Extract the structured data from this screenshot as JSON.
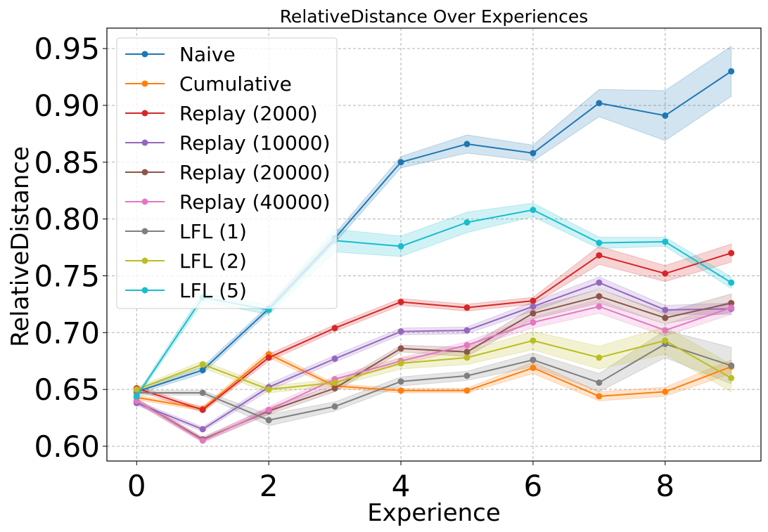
{
  "chart_data": {
    "type": "line",
    "title": "RelativeDistance Over Experiences",
    "xlabel": "Experience",
    "ylabel": "RelativeDistance",
    "xlim": [
      -0.45,
      9.45
    ],
    "ylim": [
      0.587,
      0.968
    ],
    "xticks": [
      0,
      2,
      4,
      6,
      8
    ],
    "yticks": [
      0.6,
      0.65,
      0.7,
      0.75,
      0.8,
      0.85,
      0.9,
      0.95
    ],
    "grid": true,
    "legend_position": "top-left",
    "x": [
      0,
      1,
      2,
      3,
      4,
      5,
      6,
      7,
      8,
      9
    ],
    "series": [
      {
        "name": "Naive",
        "color": "#1f77b4",
        "values": [
          0.648,
          0.667,
          0.721,
          0.783,
          0.85,
          0.866,
          0.858,
          0.902,
          0.891,
          0.93
        ],
        "band": [
          0.002,
          0.003,
          0.003,
          0.004,
          0.005,
          0.008,
          0.007,
          0.012,
          0.022,
          0.022
        ]
      },
      {
        "name": "Cumulative",
        "color": "#ff7f0e",
        "values": [
          0.643,
          0.633,
          0.681,
          0.653,
          0.649,
          0.649,
          0.669,
          0.644,
          0.648,
          0.67
        ],
        "band": [
          0.002,
          0.002,
          0.003,
          0.002,
          0.002,
          0.002,
          0.005,
          0.004,
          0.004,
          0.006
        ]
      },
      {
        "name": "Replay (2000)",
        "color": "#d62728",
        "values": [
          0.651,
          0.632,
          0.678,
          0.704,
          0.727,
          0.722,
          0.728,
          0.768,
          0.752,
          0.77
        ],
        "band": [
          0.002,
          0.002,
          0.003,
          0.003,
          0.003,
          0.003,
          0.003,
          0.008,
          0.007,
          0.008
        ]
      },
      {
        "name": "Replay (10000)",
        "color": "#9467bd",
        "values": [
          0.638,
          0.615,
          0.652,
          0.677,
          0.701,
          0.702,
          0.723,
          0.744,
          0.72,
          0.721
        ],
        "band": [
          0.002,
          0.002,
          0.003,
          0.003,
          0.003,
          0.003,
          0.004,
          0.005,
          0.004,
          0.005
        ]
      },
      {
        "name": "Replay (20000)",
        "color": "#8c564b",
        "values": [
          0.64,
          0.606,
          0.631,
          0.651,
          0.686,
          0.683,
          0.717,
          0.732,
          0.713,
          0.726
        ],
        "band": [
          0.002,
          0.002,
          0.003,
          0.003,
          0.003,
          0.004,
          0.005,
          0.006,
          0.005,
          0.008
        ]
      },
      {
        "name": "Replay (40000)",
        "color": "#e377c2",
        "values": [
          0.64,
          0.605,
          0.632,
          0.659,
          0.675,
          0.689,
          0.709,
          0.723,
          0.702,
          0.722
        ],
        "band": [
          0.002,
          0.002,
          0.003,
          0.003,
          0.003,
          0.003,
          0.005,
          0.006,
          0.005,
          0.006
        ]
      },
      {
        "name": "LFL (1)",
        "color": "#7f7f7f",
        "values": [
          0.647,
          0.647,
          0.623,
          0.635,
          0.657,
          0.662,
          0.676,
          0.656,
          0.69,
          0.671
        ],
        "band": [
          0.002,
          0.002,
          0.005,
          0.004,
          0.004,
          0.004,
          0.006,
          0.008,
          0.012,
          0.016
        ]
      },
      {
        "name": "LFL (2)",
        "color": "#bcbd22",
        "values": [
          0.65,
          0.672,
          0.65,
          0.656,
          0.673,
          0.678,
          0.693,
          0.678,
          0.693,
          0.66
        ],
        "band": [
          0.002,
          0.003,
          0.003,
          0.003,
          0.005,
          0.006,
          0.008,
          0.01,
          0.012,
          0.012
        ]
      },
      {
        "name": "LFL (5)",
        "color": "#17becf",
        "values": [
          0.644,
          0.731,
          0.72,
          0.781,
          0.776,
          0.797,
          0.808,
          0.779,
          0.78,
          0.744
        ],
        "band": [
          0.002,
          0.004,
          0.004,
          0.01,
          0.009,
          0.009,
          0.006,
          0.005,
          0.004,
          0.005
        ]
      }
    ]
  }
}
